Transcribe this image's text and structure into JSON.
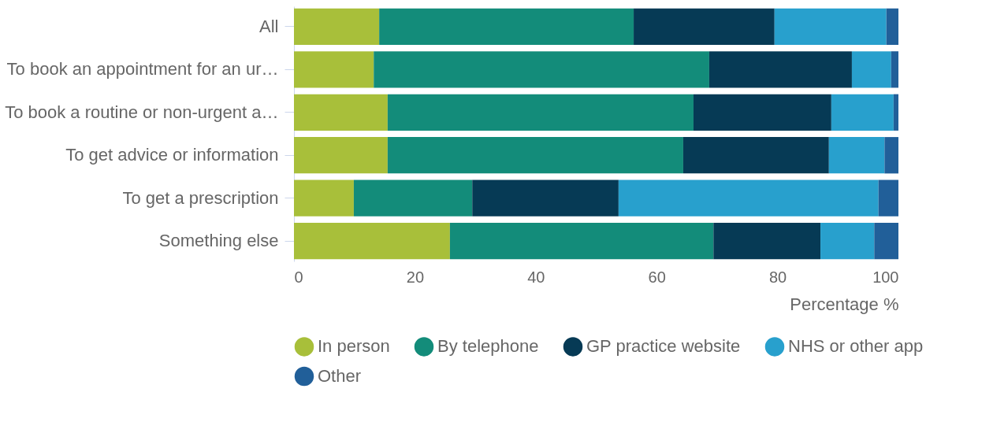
{
  "chart_data": {
    "type": "bar",
    "orientation": "horizontal",
    "stacked": true,
    "xlabel": "Percentage %",
    "xlim": [
      0,
      100
    ],
    "xticks": [
      0,
      20,
      40,
      60,
      80,
      100
    ],
    "legend": "bottom",
    "categories": [
      "All",
      "To book an appointment for an ur…",
      "To book a routine or non-urgent a…",
      "To get advice or information",
      "To get a prescription",
      "Something else"
    ],
    "series": [
      {
        "name": "In person",
        "color": "#a8bf3a",
        "values": [
          14.1,
          13.2,
          15.5,
          15.5,
          9.9,
          25.8
        ]
      },
      {
        "name": "By telephone",
        "color": "#138c7a",
        "values": [
          42.1,
          55.5,
          50.6,
          48.9,
          19.6,
          43.6
        ]
      },
      {
        "name": "GP practice website",
        "color": "#063a55",
        "values": [
          23.3,
          23.6,
          22.8,
          24.1,
          24.2,
          17.7
        ]
      },
      {
        "name": "NHS or other app",
        "color": "#28a0cd",
        "values": [
          18.5,
          6.5,
          10.3,
          9.2,
          43.0,
          8.9
        ]
      },
      {
        "name": "Other",
        "color": "#215f99",
        "values": [
          2.0,
          1.2,
          0.8,
          2.3,
          3.3,
          4.0
        ]
      }
    ]
  }
}
